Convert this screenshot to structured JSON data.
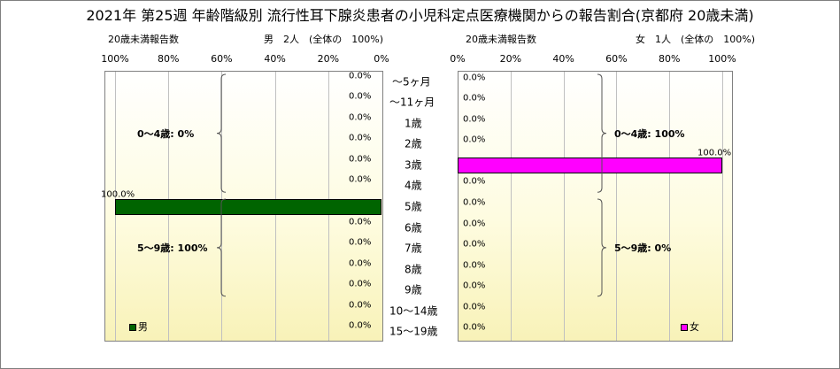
{
  "title": "2021年 第25週 年齢階級別 流行性耳下腺炎患者の小児科定点医療機関からの報告割合(京都府 20歳未満)",
  "left_header": {
    "label": "20歳未満報告数",
    "summary": "男　2人　(全体の　100%)"
  },
  "right_header": {
    "label": "20歳未満報告数",
    "summary": "女　1人　(全体の　100%)"
  },
  "colors": {
    "male": "#006400",
    "female": "#ff00ff"
  },
  "chart_data": [
    {
      "type": "bar",
      "orientation": "horizontal",
      "direction": "right-to-left",
      "categories": [
        "～5ヶ月",
        "～11ヶ月",
        "1歳",
        "2歳",
        "3歳",
        "4歳",
        "5歳",
        "6歳",
        "7歳",
        "8歳",
        "9歳",
        "10～14歳",
        "15～19歳"
      ],
      "series": [
        {
          "name": "男",
          "values": [
            0,
            0,
            0,
            0,
            0,
            0,
            100,
            0,
            0,
            0,
            0,
            0,
            0
          ]
        }
      ],
      "value_labels": [
        "0.0%",
        "0.0%",
        "0.0%",
        "0.0%",
        "0.0%",
        "0.0%",
        "100.0%",
        "0.0%",
        "0.0%",
        "0.0%",
        "0.0%",
        "0.0%",
        "0.0%"
      ],
      "xticks": [
        "100%",
        "80%",
        "60%",
        "40%",
        "20%",
        "0%"
      ],
      "xlim": [
        0,
        100
      ],
      "grid": true,
      "legend": "bottom-left",
      "groups": [
        {
          "label": "0～4歳: 0%",
          "from": 0,
          "to": 5
        },
        {
          "label": "5～9歳: 100%",
          "from": 6,
          "to": 10
        }
      ]
    },
    {
      "type": "bar",
      "orientation": "horizontal",
      "direction": "left-to-right",
      "categories": [
        "～5ヶ月",
        "～11ヶ月",
        "1歳",
        "2歳",
        "3歳",
        "4歳",
        "5歳",
        "6歳",
        "7歳",
        "8歳",
        "9歳",
        "10～14歳",
        "15～19歳"
      ],
      "series": [
        {
          "name": "女",
          "values": [
            0,
            0,
            0,
            0,
            100,
            0,
            0,
            0,
            0,
            0,
            0,
            0,
            0
          ]
        }
      ],
      "value_labels": [
        "0.0%",
        "0.0%",
        "0.0%",
        "0.0%",
        "100.0%",
        "0.0%",
        "0.0%",
        "0.0%",
        "0.0%",
        "0.0%",
        "0.0%",
        "0.0%",
        "0.0%"
      ],
      "xticks": [
        "0%",
        "20%",
        "40%",
        "60%",
        "80%",
        "100%"
      ],
      "xlim": [
        0,
        100
      ],
      "grid": true,
      "legend": "bottom-right",
      "groups": [
        {
          "label": "0～4歳: 100%",
          "from": 0,
          "to": 5
        },
        {
          "label": "5～9歳: 0%",
          "from": 6,
          "to": 10
        }
      ]
    }
  ]
}
